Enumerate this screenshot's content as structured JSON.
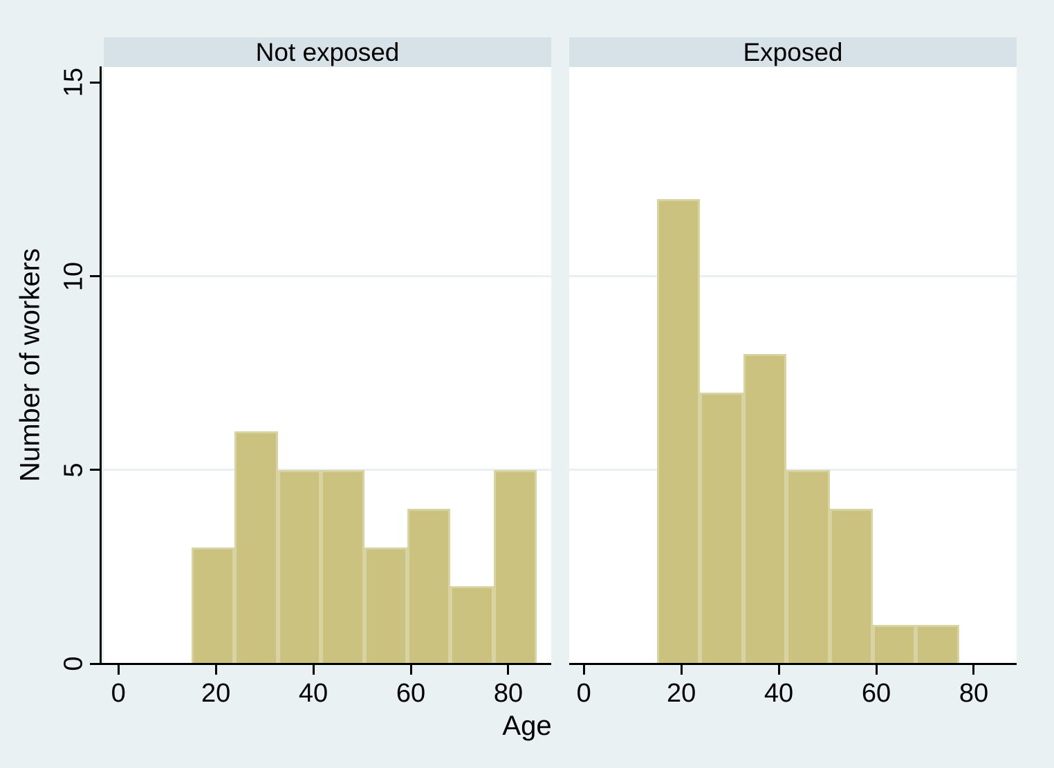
{
  "figure": {
    "colors": {
      "background": "#eaf1f3",
      "plot_background": "#ffffff",
      "header_band": "#d7e2e8",
      "gridline": "#e8f0f2",
      "bar_fill": "#cac27e",
      "bar_border": "#d8d3a2",
      "axis": "#000000",
      "text": "#000000"
    }
  },
  "chart_data": {
    "type": "bar",
    "subtype": "histogram_faceted_panels",
    "title": "",
    "xlabel": "Age",
    "ylabel": "Number of workers",
    "x_ticks": [
      0,
      20,
      40,
      60,
      80
    ],
    "y_ticks": [
      0,
      5,
      10,
      15
    ],
    "xlim": [
      -3,
      88.8
    ],
    "ylim": [
      0,
      15.4
    ],
    "gridlines_y": [
      5,
      10
    ],
    "grid": "horizontal-only",
    "legend": "none",
    "bin_start": 15,
    "bin_width": 8.857,
    "panels": [
      {
        "title": "Not exposed",
        "counts": [
          3,
          6,
          5,
          5,
          3,
          4,
          2,
          5
        ],
        "bin_edges": [
          15,
          23.86,
          32.71,
          41.57,
          50.43,
          59.29,
          68.14,
          77.0,
          85.86
        ]
      },
      {
        "title": "Exposed",
        "counts": [
          12,
          7,
          8,
          5,
          4,
          1,
          1
        ],
        "bin_edges": [
          15,
          23.86,
          32.71,
          41.57,
          50.43,
          59.29,
          68.14,
          77.0
        ]
      }
    ]
  }
}
